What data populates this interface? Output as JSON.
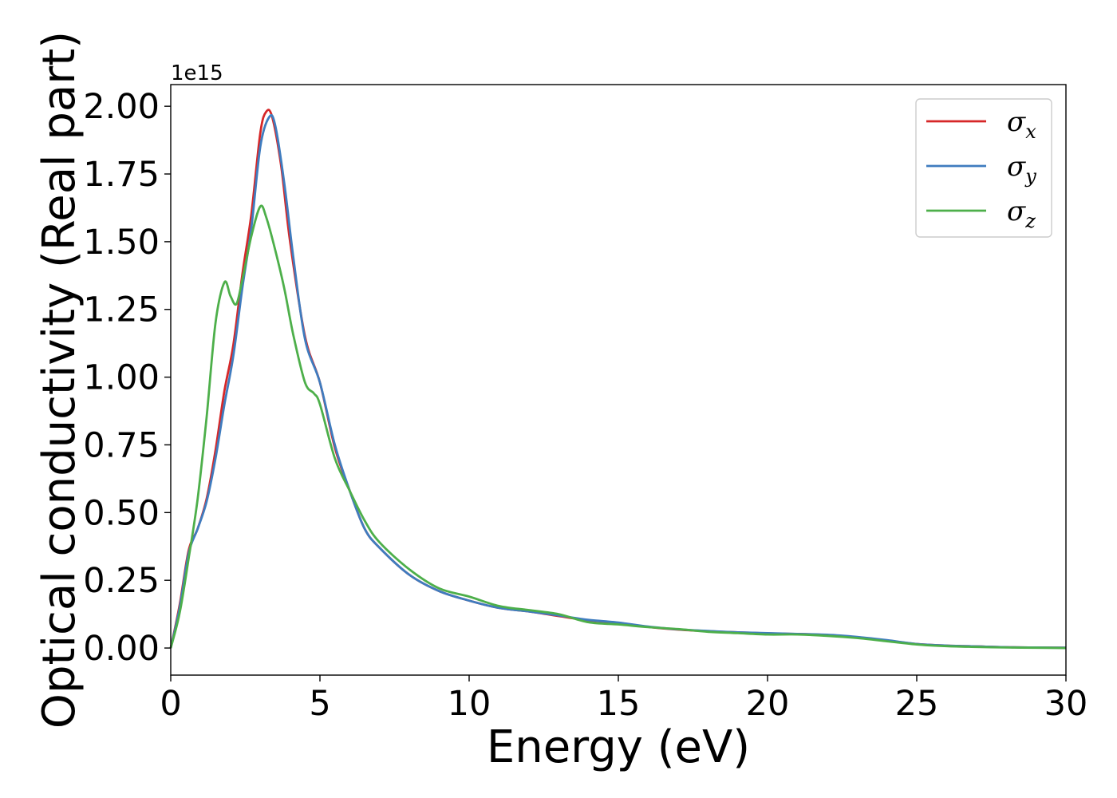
{
  "chart_data": {
    "type": "line",
    "xlabel": "Energy (eV)",
    "ylabel": "Optical conductivity (Real part)",
    "y_offset_label": "1e15",
    "xlim": [
      0,
      30
    ],
    "ylim": [
      -0.1,
      2.08
    ],
    "x_ticks": [
      0,
      5,
      10,
      15,
      20,
      25,
      30
    ],
    "x_tick_labels": [
      "0",
      "5",
      "10",
      "15",
      "20",
      "25",
      "30"
    ],
    "y_ticks": [
      0.0,
      0.25,
      0.5,
      0.75,
      1.0,
      1.25,
      1.5,
      1.75,
      2.0
    ],
    "y_tick_labels": [
      "0.00",
      "0.25",
      "0.50",
      "0.75",
      "1.00",
      "1.25",
      "1.50",
      "1.75",
      "2.00"
    ],
    "grid": false,
    "legend_position": "top-right",
    "series": [
      {
        "name": "σx",
        "symbol": "σ",
        "subscript": "x",
        "color": "#d62728",
        "x": [
          0,
          0.3,
          0.6,
          0.9,
          1.2,
          1.5,
          1.8,
          2.1,
          2.4,
          2.7,
          3.0,
          3.2,
          3.4,
          3.7,
          4.0,
          4.5,
          5.0,
          5.5,
          6.0,
          6.5,
          7.0,
          8.0,
          9.0,
          10.0,
          11.0,
          12.0,
          13.0,
          14.0,
          15.0,
          16.0,
          17.0,
          18.0,
          19.0,
          20.0,
          21.0,
          22.0,
          23.0,
          24.0,
          25.0,
          26.0,
          27.0,
          28.0,
          29.0,
          30.0
        ],
        "y": [
          0.0,
          0.16,
          0.36,
          0.44,
          0.55,
          0.73,
          0.95,
          1.12,
          1.38,
          1.6,
          1.9,
          1.98,
          1.96,
          1.78,
          1.5,
          1.15,
          0.98,
          0.74,
          0.58,
          0.44,
          0.37,
          0.27,
          0.21,
          0.175,
          0.148,
          0.135,
          0.118,
          0.102,
          0.093,
          0.078,
          0.068,
          0.062,
          0.058,
          0.054,
          0.052,
          0.048,
          0.04,
          0.028,
          0.015,
          0.009,
          0.006,
          0.003,
          0.002,
          0.001
        ]
      },
      {
        "name": "σy",
        "symbol": "σ",
        "subscript": "y",
        "color": "#3f7cbf",
        "x": [
          0,
          0.3,
          0.6,
          0.9,
          1.2,
          1.5,
          1.8,
          2.1,
          2.4,
          2.7,
          3.0,
          3.3,
          3.5,
          3.8,
          4.1,
          4.5,
          5.0,
          5.5,
          6.0,
          6.5,
          7.0,
          8.0,
          9.0,
          10.0,
          11.0,
          12.0,
          13.0,
          14.0,
          15.0,
          16.0,
          17.0,
          18.0,
          19.0,
          20.0,
          21.0,
          22.0,
          23.0,
          24.0,
          25.0,
          26.0,
          27.0,
          28.0,
          29.0,
          30.0
        ],
        "y": [
          0.0,
          0.15,
          0.35,
          0.44,
          0.54,
          0.7,
          0.9,
          1.08,
          1.33,
          1.55,
          1.85,
          1.96,
          1.93,
          1.72,
          1.45,
          1.14,
          0.98,
          0.75,
          0.58,
          0.44,
          0.37,
          0.27,
          0.21,
          0.175,
          0.148,
          0.135,
          0.12,
          0.104,
          0.094,
          0.079,
          0.069,
          0.063,
          0.058,
          0.055,
          0.052,
          0.049,
          0.041,
          0.029,
          0.015,
          0.009,
          0.006,
          0.003,
          0.002,
          0.001
        ]
      },
      {
        "name": "σz",
        "symbol": "σ",
        "subscript": "z",
        "color": "#4daf4a",
        "x": [
          0,
          0.3,
          0.6,
          0.9,
          1.2,
          1.5,
          1.8,
          2.0,
          2.2,
          2.4,
          2.7,
          3.0,
          3.2,
          3.5,
          3.8,
          4.1,
          4.5,
          4.8,
          5.0,
          5.5,
          6.0,
          6.5,
          7.0,
          8.0,
          9.0,
          10.0,
          11.0,
          12.0,
          13.0,
          14.0,
          15.0,
          16.0,
          17.0,
          18.0,
          19.0,
          20.0,
          21.0,
          22.0,
          23.0,
          24.0,
          25.0,
          26.0,
          27.0,
          28.0,
          29.0,
          30.0
        ],
        "y": [
          0.0,
          0.13,
          0.33,
          0.55,
          0.85,
          1.2,
          1.35,
          1.3,
          1.27,
          1.36,
          1.52,
          1.63,
          1.59,
          1.47,
          1.33,
          1.16,
          0.98,
          0.94,
          0.9,
          0.7,
          0.58,
          0.47,
          0.39,
          0.29,
          0.22,
          0.19,
          0.155,
          0.14,
          0.125,
          0.095,
          0.087,
          0.077,
          0.07,
          0.06,
          0.055,
          0.05,
          0.05,
          0.045,
          0.037,
          0.025,
          0.013,
          0.007,
          0.004,
          0.002,
          0.001,
          0.0
        ]
      }
    ]
  }
}
